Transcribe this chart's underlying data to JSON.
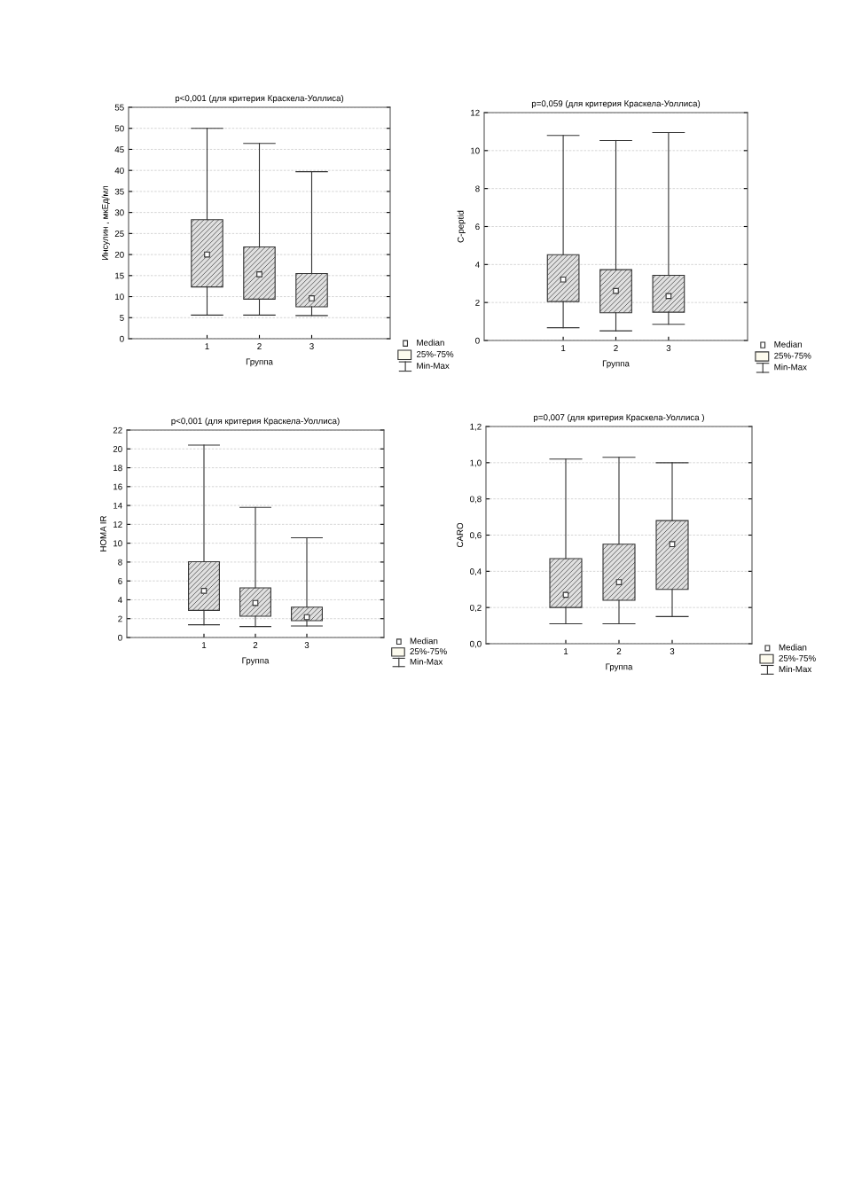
{
  "chart_data": [
    {
      "type": "box",
      "title": "p<0,001 (для критерия Краскела-Уоллиса)",
      "xlabel": "Группа",
      "ylabel": "Инсулин , мкЕд/мл",
      "categories": [
        "1",
        "2",
        "3"
      ],
      "boxes": [
        {
          "low": 5.6,
          "q1": 12.3,
          "median": 20,
          "q3": 28.3,
          "high": 50
        },
        {
          "low": 5.6,
          "q1": 9.4,
          "median": 15.3,
          "q3": 21.8,
          "high": 46.4
        },
        {
          "low": 5.5,
          "q1": 7.6,
          "median": 9.6,
          "q3": 15.5,
          "high": 39.7
        }
      ],
      "ylim": [
        0,
        55
      ],
      "yticks": [
        0,
        5,
        10,
        15,
        20,
        25,
        30,
        35,
        40,
        45,
        50,
        55
      ],
      "grid": "y",
      "annotations": [
        "Median",
        "25%-75%",
        "Min-Max"
      ]
    },
    {
      "type": "box",
      "title": "p=0,059 (для критерия Краскела-Уоллиса)",
      "xlabel": "Группа",
      "ylabel": "C-peptid",
      "categories": [
        "1",
        "2",
        "3"
      ],
      "boxes": [
        {
          "low": 0.67,
          "q1": 2.05,
          "median": 3.21,
          "q3": 4.52,
          "high": 10.8
        },
        {
          "low": 0.51,
          "q1": 1.46,
          "median": 2.61,
          "q3": 3.73,
          "high": 10.53
        },
        {
          "low": 0.85,
          "q1": 1.49,
          "median": 2.34,
          "q3": 3.43,
          "high": 10.95
        }
      ],
      "ylim": [
        0,
        12
      ],
      "yticks": [
        0,
        2,
        4,
        6,
        8,
        10,
        12
      ],
      "grid": "y",
      "annotations": [
        "Median",
        "25%-75%",
        "Min-Max"
      ]
    },
    {
      "type": "box",
      "title": "p<0,001 (для критерия Краскела-Уоллиса)",
      "xlabel": "Группа",
      "ylabel": "HOMA IR",
      "categories": [
        "1",
        "2",
        "3"
      ],
      "boxes": [
        {
          "low": 1.35,
          "q1": 2.88,
          "median": 4.95,
          "q3": 8.04,
          "high": 20.4
        },
        {
          "low": 1.16,
          "q1": 2.25,
          "median": 3.66,
          "q3": 5.26,
          "high": 13.8
        },
        {
          "low": 1.22,
          "q1": 1.78,
          "median": 2.16,
          "q3": 3.22,
          "high": 10.58
        }
      ],
      "ylim": [
        0,
        22
      ],
      "yticks": [
        0,
        2,
        4,
        6,
        8,
        10,
        12,
        14,
        16,
        18,
        20,
        22
      ],
      "grid": "y",
      "annotations": [
        "Median",
        "25%-75%",
        "Min-Max"
      ]
    },
    {
      "type": "box",
      "title": "p=0,007 (для критерия Краскела-Уоллиса )",
      "xlabel": "Группа",
      "ylabel": "CARO",
      "categories": [
        "1",
        "2",
        "3"
      ],
      "boxes": [
        {
          "low": 0.11,
          "q1": 0.2,
          "median": 0.27,
          "q3": 0.47,
          "high": 1.02
        },
        {
          "low": 0.11,
          "q1": 0.24,
          "median": 0.34,
          "q3": 0.55,
          "high": 1.03
        },
        {
          "low": 0.15,
          "q1": 0.3,
          "median": 0.55,
          "q3": 0.68,
          "high": 1.0
        }
      ],
      "ylim": [
        0,
        1.2
      ],
      "yticks": [
        {
          "value": 0,
          "label": "0,0"
        },
        {
          "value": 0.2,
          "label": "0,2"
        },
        {
          "value": 0.4,
          "label": "0,4"
        },
        {
          "value": 0.6,
          "label": "0,6"
        },
        {
          "value": 0.8,
          "label": "0,8"
        },
        {
          "value": 1.0,
          "label": "1,0"
        },
        {
          "value": 1.2,
          "label": "1,2"
        }
      ],
      "grid": "y",
      "annotations": [
        "Median",
        "25%-75%",
        "Min-Max"
      ]
    }
  ]
}
